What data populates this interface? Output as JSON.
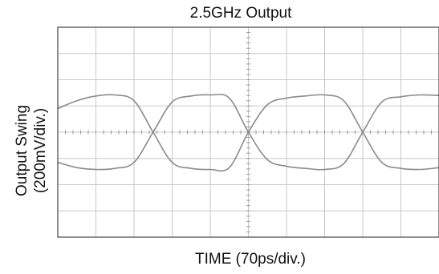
{
  "chart_data": {
    "type": "line",
    "title": "2.5GHz Output",
    "xlabel": "TIME (70ps/div.)",
    "ylabel": [
      "Output Swing",
      "(200mV/div.)"
    ],
    "xlim": [
      0,
      10
    ],
    "ylim": [
      -4,
      4
    ],
    "grid": true,
    "x_unit_per_div": "70ps",
    "y_unit_per_div": "200mV",
    "series": [
      {
        "x": [
          0,
          0.5,
          1,
          1.5,
          2,
          2.5,
          3,
          3.5,
          4,
          4.5,
          5,
          5.5,
          6,
          6.5,
          7,
          7.5,
          8,
          8.5,
          9,
          9.5,
          10
        ],
        "values": [
          0.9,
          1.2,
          1.38,
          1.42,
          1.2,
          0,
          -1.15,
          -1.38,
          -1.42,
          -1.35,
          0,
          1.05,
          1.3,
          1.38,
          1.42,
          1.2,
          0,
          -1.15,
          -1.38,
          -1.42,
          -1.35
        ]
      },
      {
        "x": [
          0,
          0.5,
          1,
          1.5,
          2,
          2.5,
          3,
          3.5,
          4,
          4.5,
          5,
          5.5,
          6,
          6.5,
          7,
          7.5,
          8,
          8.5,
          9,
          9.5,
          10
        ],
        "values": [
          -1.15,
          -1.35,
          -1.42,
          -1.38,
          -1.15,
          0,
          1.15,
          1.38,
          1.42,
          1.3,
          0,
          -1.05,
          -1.3,
          -1.38,
          -1.42,
          -1.2,
          0,
          1.15,
          1.35,
          1.42,
          1.4
        ]
      }
    ]
  }
}
